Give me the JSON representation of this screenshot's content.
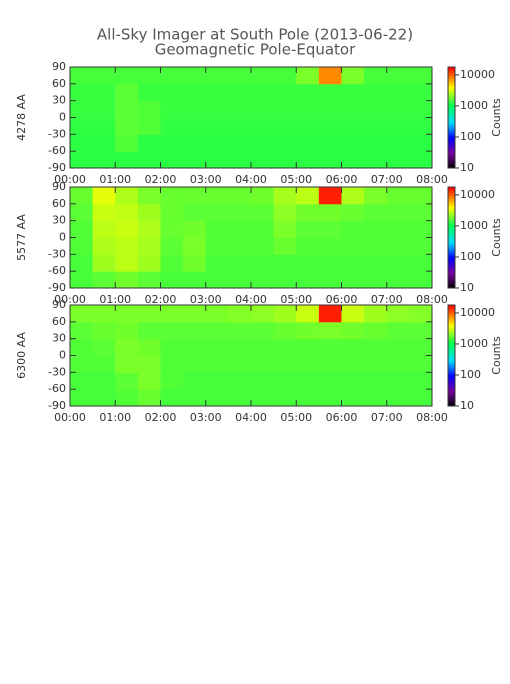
{
  "chart_data": [
    {
      "type": "heatmap",
      "title": "All-Sky Imager at South Pole (2013-06-22)",
      "subtitle": "Geomagnetic Pole-Equator",
      "ylabel": "4278 AA",
      "xlim": [
        0,
        8
      ],
      "xticks": [
        {
          "value": 0,
          "label": "00:00"
        },
        {
          "value": 1,
          "label": "01:00"
        },
        {
          "value": 2,
          "label": "02:00"
        },
        {
          "value": 3,
          "label": "03:00"
        },
        {
          "value": 4,
          "label": "04:00"
        },
        {
          "value": 5,
          "label": "05:00"
        },
        {
          "value": 6,
          "label": "06:00"
        },
        {
          "value": 7,
          "label": "07:00"
        },
        {
          "value": 8,
          "label": "08:00"
        }
      ],
      "ylim": [
        -90,
        90
      ],
      "yticks": [
        -90,
        -60,
        -30,
        0,
        30,
        60,
        90
      ],
      "clim": [
        10,
        18000
      ],
      "cticks": [
        10,
        100,
        1000,
        10000
      ],
      "clabel": "Counts",
      "xbins": [
        0,
        0.5,
        1,
        1.5,
        2,
        2.5,
        3,
        3.5,
        4,
        4.5,
        5,
        5.5,
        6,
        6.5,
        7,
        7.5,
        8
      ],
      "ybins": [
        -90,
        -60,
        -30,
        0,
        30,
        60,
        90
      ],
      "z": [
        [
          1300,
          1300,
          1300,
          1300,
          1300,
          1300,
          1300,
          1300,
          1300,
          1300,
          1300,
          1300,
          1300,
          1300,
          1300,
          1300
        ],
        [
          1300,
          1300,
          1600,
          1300,
          1300,
          1300,
          1300,
          1300,
          1300,
          1300,
          1300,
          1300,
          1300,
          1300,
          1300,
          1300
        ],
        [
          1350,
          1350,
          1700,
          1600,
          1350,
          1350,
          1350,
          1350,
          1350,
          1350,
          1350,
          1350,
          1350,
          1350,
          1350,
          1350
        ],
        [
          1400,
          1400,
          1700,
          1600,
          1400,
          1400,
          1400,
          1400,
          1400,
          1400,
          1400,
          1400,
          1400,
          1400,
          1400,
          1400
        ],
        [
          1400,
          1400,
          1700,
          1400,
          1400,
          1400,
          1400,
          1400,
          1400,
          1400,
          1400,
          1400,
          1400,
          1400,
          1400,
          1400
        ],
        [
          1500,
          1500,
          1500,
          1500,
          1500,
          1500,
          1500,
          1500,
          1500,
          1500,
          2000,
          8000,
          2000,
          1500,
          1500,
          1500
        ]
      ]
    },
    {
      "type": "heatmap",
      "ylabel": "5577 AA",
      "xlim": [
        0,
        8
      ],
      "xticks": [
        {
          "value": 0,
          "label": "00:00"
        },
        {
          "value": 1,
          "label": "01:00"
        },
        {
          "value": 2,
          "label": "02:00"
        },
        {
          "value": 3,
          "label": "03:00"
        },
        {
          "value": 4,
          "label": "04:00"
        },
        {
          "value": 5,
          "label": "05:00"
        },
        {
          "value": 6,
          "label": "06:00"
        },
        {
          "value": 7,
          "label": "07:00"
        },
        {
          "value": 8,
          "label": "08:00"
        }
      ],
      "ylim": [
        -90,
        90
      ],
      "yticks": [
        -90,
        -60,
        -30,
        0,
        30,
        60,
        90
      ],
      "clim": [
        10,
        18000
      ],
      "cticks": [
        10,
        100,
        1000,
        10000
      ],
      "clabel": "Counts",
      "xbins": [
        0,
        0.5,
        1,
        1.5,
        2,
        2.5,
        3,
        3.5,
        4,
        4.5,
        5,
        5.5,
        6,
        6.5,
        7,
        7.5,
        8
      ],
      "ybins": [
        -90,
        -60,
        -30,
        0,
        30,
        60,
        90
      ],
      "z": [
        [
          1500,
          1700,
          1900,
          1700,
          1500,
          1500,
          1500,
          1500,
          1500,
          1500,
          1500,
          1500,
          1500,
          1500,
          1500,
          1500
        ],
        [
          1500,
          2400,
          2800,
          2400,
          1600,
          1900,
          1500,
          1500,
          1500,
          1500,
          1500,
          1500,
          1500,
          1500,
          1500,
          1500
        ],
        [
          1600,
          2600,
          2800,
          2500,
          1700,
          2000,
          1600,
          1600,
          1600,
          1800,
          1600,
          1600,
          1600,
          1600,
          1600,
          1600
        ],
        [
          1600,
          2800,
          3000,
          2600,
          1800,
          1900,
          1600,
          1600,
          1600,
          2000,
          1700,
          1700,
          1600,
          1600,
          1600,
          1600
        ],
        [
          1700,
          3000,
          2900,
          2400,
          1800,
          1700,
          1700,
          1700,
          1700,
          2200,
          1900,
          1900,
          1800,
          1700,
          1700,
          1700
        ],
        [
          1800,
          3500,
          2600,
          2000,
          1800,
          1800,
          1800,
          1800,
          1900,
          2500,
          2800,
          15000,
          2600,
          2000,
          1800,
          1800
        ]
      ]
    },
    {
      "type": "heatmap",
      "ylabel": "6300 AA",
      "xlim": [
        0,
        8
      ],
      "xticks": [
        {
          "value": 0,
          "label": "00:00"
        },
        {
          "value": 1,
          "label": "01:00"
        },
        {
          "value": 2,
          "label": "02:00"
        },
        {
          "value": 3,
          "label": "03:00"
        },
        {
          "value": 4,
          "label": "04:00"
        },
        {
          "value": 5,
          "label": "05:00"
        },
        {
          "value": 6,
          "label": "06:00"
        },
        {
          "value": 7,
          "label": "07:00"
        },
        {
          "value": 8,
          "label": "08:00"
        }
      ],
      "ylim": [
        -90,
        90
      ],
      "yticks": [
        -90,
        -60,
        -30,
        0,
        30,
        60,
        90
      ],
      "clim": [
        10,
        18000
      ],
      "cticks": [
        10,
        100,
        1000,
        10000
      ],
      "clabel": "Counts",
      "xbins": [
        0,
        0.5,
        1,
        1.5,
        2,
        2.5,
        3,
        3.5,
        4,
        4.5,
        5,
        5.5,
        6,
        6.5,
        7,
        7.5,
        8
      ],
      "ybins": [
        -90,
        -60,
        -30,
        0,
        30,
        60,
        90
      ],
      "z": [
        [
          1500,
          1500,
          1600,
          1800,
          1500,
          1500,
          1500,
          1500,
          1500,
          1500,
          1500,
          1500,
          1500,
          1500,
          1500,
          1500
        ],
        [
          1500,
          1500,
          1700,
          2000,
          1600,
          1500,
          1500,
          1500,
          1500,
          1500,
          1500,
          1500,
          1500,
          1500,
          1500,
          1500
        ],
        [
          1600,
          1600,
          2000,
          2000,
          1600,
          1600,
          1600,
          1600,
          1600,
          1600,
          1600,
          1600,
          1600,
          1600,
          1600,
          1600
        ],
        [
          1600,
          1700,
          2000,
          1900,
          1600,
          1600,
          1600,
          1600,
          1600,
          1600,
          1600,
          1600,
          1600,
          1600,
          1600,
          1600
        ],
        [
          1700,
          1800,
          1900,
          1700,
          1700,
          1700,
          1700,
          1700,
          1700,
          1800,
          1900,
          2000,
          1900,
          1800,
          1700,
          1700
        ],
        [
          2000,
          2000,
          2000,
          2000,
          2000,
          2000,
          2000,
          2100,
          2200,
          2400,
          3000,
          15000,
          3000,
          2400,
          2200,
          2100
        ]
      ]
    }
  ]
}
